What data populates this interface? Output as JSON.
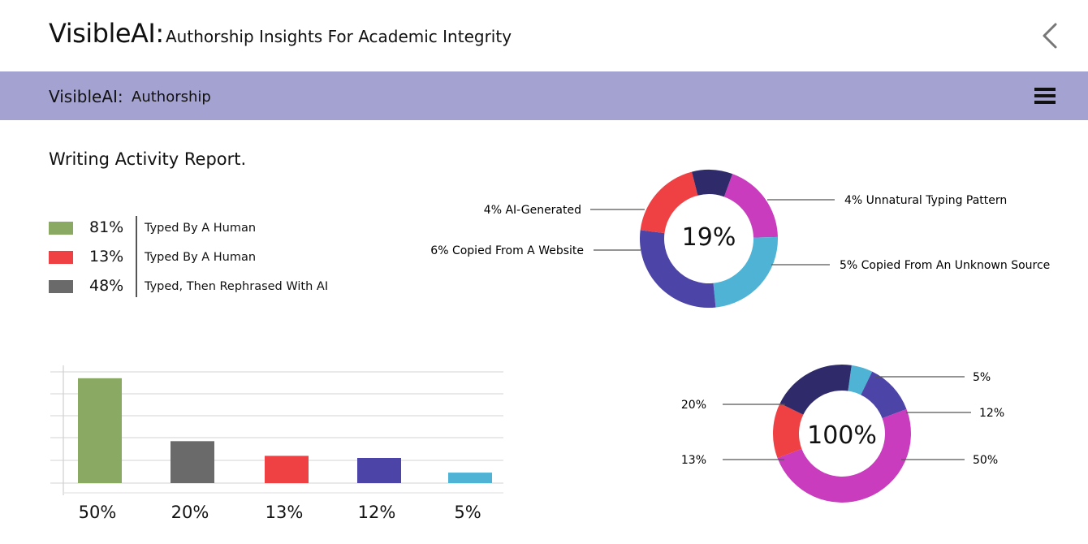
{
  "header": {
    "brand": "VisibleAI:",
    "subtitle": "Authorship Insights For Academic Integrity",
    "back_icon": "chevron-left-icon"
  },
  "navbar": {
    "brand": "VisibleAI:",
    "section": "Authorship",
    "menu_icon": "hamburger-menu-icon",
    "background": "#a4a2d1"
  },
  "report": {
    "title": "Writing Activity Report.",
    "legend": [
      {
        "percent": "81%",
        "label": "Typed By A Human",
        "color": "#8aaa63"
      },
      {
        "percent": "13%",
        "label": "Typed By A Human",
        "color": "#ef4144"
      },
      {
        "percent": "48%",
        "label": "Typed, Then Rephrased With AI",
        "color": "#6a6a6a"
      }
    ]
  },
  "colors": {
    "green": "#8aaa63",
    "gray": "#6a6a6a",
    "red": "#ef4144",
    "indigo": "#4c44a6",
    "cyan": "#4eb3d5",
    "navy": "#2f2a6a",
    "magenta": "#c83cbd"
  },
  "chart_data": [
    {
      "type": "pie",
      "variant": "donut",
      "center_label": "19%",
      "slices": [
        {
          "label": "4% Unnatural Typing Pattern",
          "value": 4,
          "color": "#c83cbd"
        },
        {
          "label": "5% Copied From An Unknown Source",
          "value": 5,
          "color": "#4eb3d5"
        },
        {
          "label": "6% Copied From A Website",
          "value": 6,
          "color": "#4c44a6"
        },
        {
          "label": "4% AI-Generated",
          "value": 4,
          "color": "#ef4144"
        },
        {
          "label": "",
          "value": 2,
          "color": "#2f2a6a"
        }
      ]
    },
    {
      "type": "bar",
      "categories": [
        "50%",
        "20%",
        "13%",
        "12%",
        "5%"
      ],
      "values": [
        50,
        20,
        13,
        12,
        5
      ],
      "colors": [
        "#8aaa63",
        "#6a6a6a",
        "#ef4144",
        "#4c44a6",
        "#4eb3d5"
      ],
      "ylim": [
        0,
        60
      ],
      "grid": true
    },
    {
      "type": "pie",
      "variant": "donut",
      "center_label": "100%",
      "slices": [
        {
          "label": "5%",
          "value": 5,
          "color": "#4eb3d5"
        },
        {
          "label": "12%",
          "value": 12,
          "color": "#4c44a6"
        },
        {
          "label": "50%",
          "value": 50,
          "color": "#c83cbd"
        },
        {
          "label": "13%",
          "value": 13,
          "color": "#ef4144"
        },
        {
          "label": "20%",
          "value": 20,
          "color": "#2f2a6a"
        }
      ]
    }
  ]
}
